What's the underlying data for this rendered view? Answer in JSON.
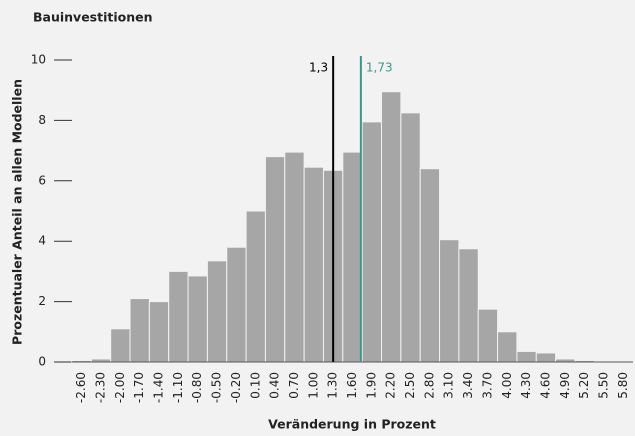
{
  "chart_data": {
    "type": "histogram",
    "title": "Bauinvestitionen",
    "x_label": "Veränderung in Prozent",
    "y_label": "Prozentualer Anteil an allen Modellen",
    "categories": [
      "-2.60",
      "-2.30",
      "-2.00",
      "-1.70",
      "-1.40",
      "-1.10",
      "-0.80",
      "-0.50",
      "-0.20",
      "0.10",
      "0.40",
      "0.70",
      "1.00",
      "1.30",
      "1.60",
      "1.90",
      "2.20",
      "2.50",
      "2.80",
      "3.10",
      "3.40",
      "3.70",
      "4.00",
      "4.30",
      "4.60",
      "4.90",
      "5.20",
      "5.50",
      "5.80"
    ],
    "values": [
      0.05,
      0.1,
      1.1,
      2.1,
      2.0,
      3.0,
      2.85,
      3.35,
      3.8,
      5.0,
      6.8,
      6.95,
      6.45,
      6.35,
      6.95,
      7.95,
      8.95,
      8.25,
      6.4,
      4.05,
      3.75,
      1.75,
      1.0,
      0.35,
      0.3,
      0.1,
      0.05,
      0,
      0
    ],
    "color": "#a6a6a6",
    "xlim": [
      -2.75,
      5.95
    ],
    "ylim": [
      0,
      10
    ],
    "yticks": [
      0,
      2,
      4,
      6,
      8,
      10
    ],
    "reference_lines": [
      {
        "value": 1.3,
        "label": "1,3",
        "color": "#000000"
      },
      {
        "value": 1.73,
        "label": "1,73",
        "color": "#3a9a8a"
      }
    ]
  }
}
